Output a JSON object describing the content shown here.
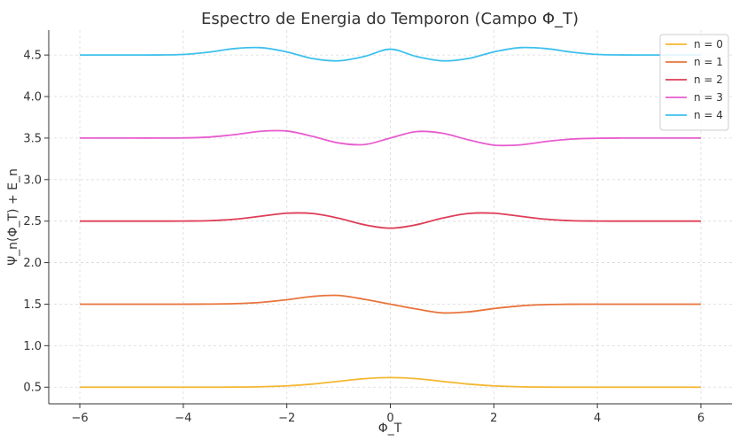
{
  "chart_data": {
    "type": "line",
    "title": "Espectro de Energia do Temporon (Campo Φ_T)",
    "xlabel": "Φ_T",
    "ylabel": "Ψ_n(Φ_T) + E_n",
    "xlim": [
      -6.6,
      6.6
    ],
    "ylim": [
      0.3,
      4.8
    ],
    "xticks": [
      -6,
      -4,
      -2,
      0,
      2,
      4,
      6
    ],
    "xtick_labels": [
      "−6",
      "−4",
      "−2",
      "0",
      "2",
      "4",
      "6"
    ],
    "yticks": [
      0.5,
      1.0,
      1.5,
      2.0,
      2.5,
      3.0,
      3.5,
      4.0,
      4.5
    ],
    "ytick_labels": [
      "0.5",
      "1.0",
      "1.5",
      "2.0",
      "2.5",
      "3.0",
      "3.5",
      "4.0",
      "4.5"
    ],
    "grid": true,
    "legend_position": "top-right",
    "x_sample": [
      -6.0,
      -5.5,
      -5.0,
      -4.5,
      -4.0,
      -3.5,
      -3.0,
      -2.5,
      -2.0,
      -1.5,
      -1.0,
      -0.5,
      0.0,
      0.5,
      1.0,
      1.5,
      2.0,
      2.5,
      3.0,
      3.5,
      4.0,
      4.5,
      5.0,
      5.5,
      6.0
    ],
    "series": [
      {
        "name": "n = 0",
        "color": "#f4b731",
        "values": [
          0.5,
          0.5,
          0.5,
          0.5,
          0.5,
          0.5,
          0.501,
          0.505,
          0.516,
          0.538,
          0.571,
          0.603,
          0.616,
          0.603,
          0.571,
          0.538,
          0.516,
          0.505,
          0.501,
          0.5,
          0.5,
          0.5,
          0.5,
          0.5,
          0.5
        ]
      },
      {
        "name": "n = 1",
        "color": "#e8743b",
        "values": [
          1.5,
          1.5,
          1.5,
          1.5,
          1.5,
          1.501,
          1.506,
          1.521,
          1.553,
          1.593,
          1.605,
          1.558,
          1.5,
          1.442,
          1.395,
          1.407,
          1.447,
          1.479,
          1.494,
          1.499,
          1.5,
          1.5,
          1.5,
          1.5,
          1.5
        ]
      },
      {
        "name": "n = 2",
        "color": "#de3d57",
        "values": [
          2.5,
          2.5,
          2.5,
          2.5,
          2.501,
          2.505,
          2.523,
          2.559,
          2.595,
          2.591,
          2.535,
          2.456,
          2.415,
          2.456,
          2.535,
          2.591,
          2.595,
          2.559,
          2.523,
          2.505,
          2.501,
          2.5,
          2.5,
          2.5,
          2.5
        ]
      },
      {
        "name": "n = 3",
        "color": "#e85ccf",
        "values": [
          3.5,
          3.5,
          3.5,
          3.5,
          3.502,
          3.512,
          3.542,
          3.582,
          3.585,
          3.52,
          3.441,
          3.422,
          3.5,
          3.578,
          3.559,
          3.48,
          3.415,
          3.418,
          3.458,
          3.488,
          3.498,
          3.5,
          3.5,
          3.5,
          3.5
        ]
      },
      {
        "name": "n = 4",
        "color": "#3ec0ec",
        "values": [
          4.5,
          4.5,
          4.5,
          4.501,
          4.507,
          4.535,
          4.578,
          4.589,
          4.538,
          4.457,
          4.43,
          4.483,
          4.57,
          4.483,
          4.43,
          4.457,
          4.538,
          4.589,
          4.578,
          4.535,
          4.507,
          4.501,
          4.5,
          4.5,
          4.5
        ]
      }
    ]
  }
}
